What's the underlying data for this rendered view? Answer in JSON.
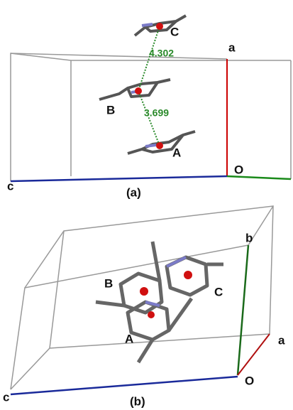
{
  "panels": [
    {
      "caption": "(a)",
      "molecules": [
        "C",
        "B",
        "A"
      ],
      "distances": [
        4.302,
        3.699
      ],
      "axes": [
        "a",
        "O",
        "c"
      ]
    },
    {
      "caption": "(b)",
      "molecules": [
        "B",
        "C",
        "A"
      ],
      "axes": [
        "b",
        "a",
        "O",
        "c"
      ]
    }
  ]
}
